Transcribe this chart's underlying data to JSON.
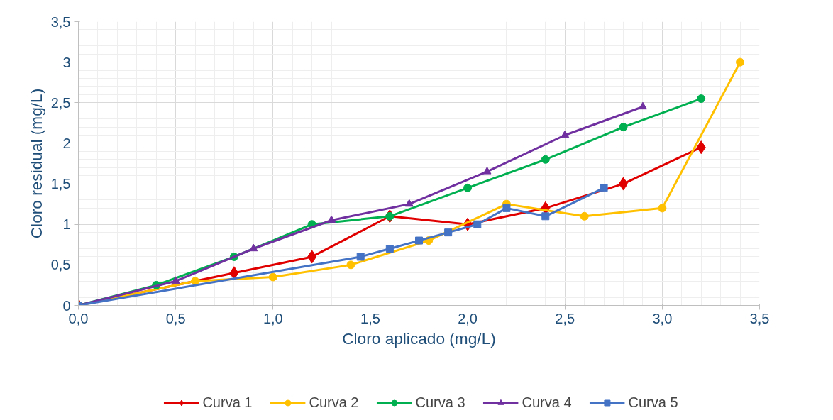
{
  "chart_data": {
    "type": "line",
    "xlabel": "Cloro aplicado (mg/L)",
    "ylabel": "Cloro residual (mg/L)",
    "xlim": [
      0,
      3.5
    ],
    "ylim": [
      0,
      3.5
    ],
    "xticks": [
      {
        "value": 0,
        "label": "0,0"
      },
      {
        "value": 0.5,
        "label": "0,5"
      },
      {
        "value": 1,
        "label": "1,0"
      },
      {
        "value": 1.5,
        "label": "1,5"
      },
      {
        "value": 2,
        "label": "2,0"
      },
      {
        "value": 2.5,
        "label": "2,5"
      },
      {
        "value": 3,
        "label": "3,0"
      },
      {
        "value": 3.5,
        "label": "3,5"
      }
    ],
    "yticks": [
      0,
      {
        "value": 0.5,
        "label": "0,5"
      },
      1,
      {
        "value": 1.5,
        "label": "1,5"
      },
      2,
      {
        "value": 2.5,
        "label": "2,5"
      },
      3,
      {
        "value": 3.5,
        "label": "3,5"
      }
    ],
    "grid": true,
    "legend": "bottom",
    "line_style": "solid",
    "series": [
      {
        "name": "Curva 1",
        "color": "#e00000",
        "marker": "diamond",
        "x": [
          0,
          0.8,
          1.2,
          1.6,
          2.0,
          2.4,
          2.8,
          3.2
        ],
        "values": [
          0,
          0.4,
          0.6,
          1.1,
          1.0,
          1.2,
          1.5,
          1.95
        ]
      },
      {
        "name": "Curva 2",
        "color": "#ffc000",
        "marker": "circle",
        "x": [
          0,
          0.6,
          1.0,
          1.4,
          1.8,
          2.2,
          2.6,
          3.0,
          3.4
        ],
        "values": [
          0,
          0.3,
          0.35,
          0.5,
          0.8,
          1.25,
          1.1,
          1.2,
          3.0
        ]
      },
      {
        "name": "Curva 3",
        "color": "#00b050",
        "marker": "circle",
        "x": [
          0,
          0.4,
          0.8,
          1.2,
          1.6,
          2.0,
          2.4,
          2.8,
          3.2
        ],
        "values": [
          0,
          0.25,
          0.6,
          1.0,
          1.1,
          1.45,
          1.8,
          2.2,
          2.55
        ]
      },
      {
        "name": "Curva 4",
        "color": "#7030a0",
        "marker": "triangle",
        "x": [
          0,
          0.5,
          0.9,
          1.3,
          1.7,
          2.1,
          2.5,
          2.9
        ],
        "values": [
          0,
          0.3,
          0.7,
          1.05,
          1.25,
          1.65,
          2.1,
          2.45
        ]
      },
      {
        "name": "Curva 5",
        "color": "#4472c4",
        "marker": "square",
        "x": [
          0,
          1.45,
          1.6,
          1.75,
          1.9,
          2.05,
          2.2,
          2.4,
          2.7
        ],
        "values": [
          0,
          0.6,
          0.7,
          0.8,
          0.9,
          1.0,
          1.2,
          1.1,
          1.45
        ]
      }
    ]
  }
}
